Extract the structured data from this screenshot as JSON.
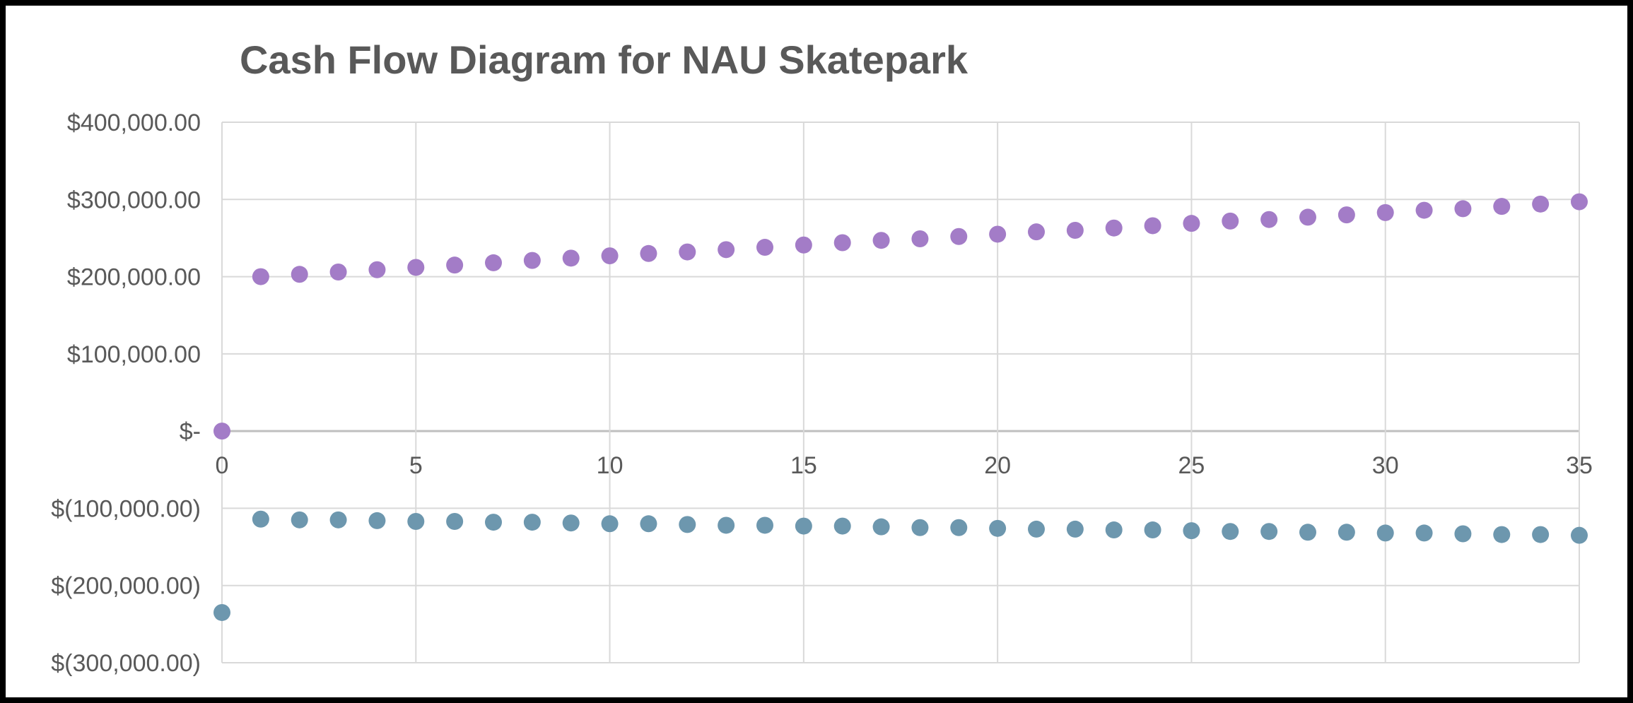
{
  "chart_data": {
    "type": "scatter",
    "title": "Cash Flow Diagram for NAU Skatepark",
    "xlabel": "",
    "ylabel": "",
    "xlim": [
      0,
      35
    ],
    "ylim": [
      -300000,
      400000
    ],
    "x_ticks": [
      "0",
      "5",
      "10",
      "15",
      "20",
      "25",
      "30",
      "35"
    ],
    "y_ticks": [
      {
        "value": 400000,
        "label": "$400,000.00"
      },
      {
        "value": 300000,
        "label": "$300,000.00"
      },
      {
        "value": 200000,
        "label": "$200,000.00"
      },
      {
        "value": 100000,
        "label": "$100,000.00"
      },
      {
        "value": 0,
        "label": "$-"
      },
      {
        "value": -100000,
        "label": "$(100,000.00)"
      },
      {
        "value": -200000,
        "label": "$(200,000.00)"
      },
      {
        "value": -300000,
        "label": "$(300,000.00)"
      }
    ],
    "grid": true,
    "legend": "none",
    "series": [
      {
        "color": "#a37cc7",
        "x": [
          0,
          1,
          2,
          3,
          4,
          5,
          6,
          7,
          8,
          9,
          10,
          11,
          12,
          13,
          14,
          15,
          16,
          17,
          18,
          19,
          20,
          21,
          22,
          23,
          24,
          25,
          26,
          27,
          28,
          29,
          30,
          31,
          32,
          33,
          34,
          35
        ],
        "y": [
          0,
          200000,
          203000,
          206000,
          209000,
          212000,
          215000,
          218000,
          221000,
          224000,
          227000,
          230000,
          232000,
          235000,
          238000,
          241000,
          244000,
          247000,
          249000,
          252000,
          255000,
          258000,
          260000,
          263000,
          266000,
          269000,
          272000,
          274000,
          277000,
          280000,
          283000,
          286000,
          288000,
          291000,
          294000,
          297000
        ]
      },
      {
        "color": "#6d97ae",
        "x": [
          0,
          1,
          2,
          3,
          4,
          5,
          6,
          7,
          8,
          9,
          10,
          11,
          12,
          13,
          14,
          15,
          16,
          17,
          18,
          19,
          20,
          21,
          22,
          23,
          24,
          25,
          26,
          27,
          28,
          29,
          30,
          31,
          32,
          33,
          34,
          35
        ],
        "y": [
          -235000,
          -114000,
          -115000,
          -115000,
          -116000,
          -117000,
          -117000,
          -118000,
          -118000,
          -119000,
          -120000,
          -120000,
          -121000,
          -122000,
          -122000,
          -123000,
          -123000,
          -124000,
          -125000,
          -125000,
          -126000,
          -127000,
          -127000,
          -128000,
          -128000,
          -129000,
          -130000,
          -130000,
          -131000,
          -131000,
          -132000,
          -132000,
          -133000,
          -134000,
          -134000,
          -135000
        ]
      }
    ]
  }
}
